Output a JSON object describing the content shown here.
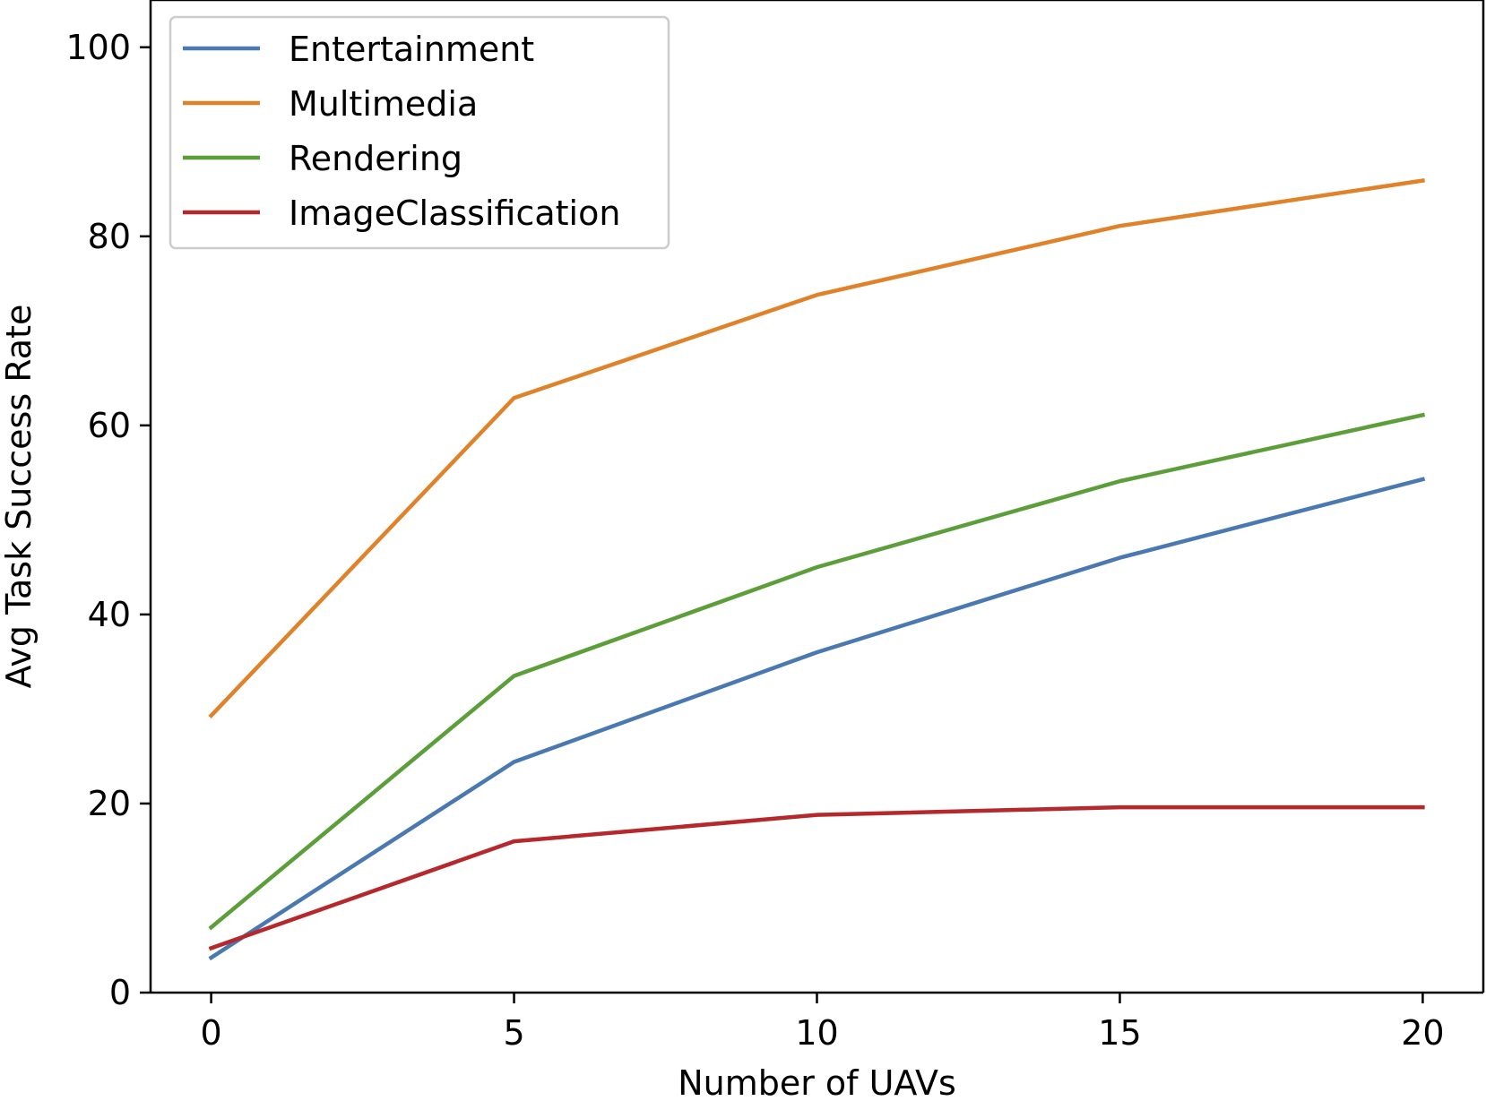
{
  "chart_data": {
    "type": "line",
    "xlabel": "Number of UAVs",
    "ylabel": "Avg Task Success Rate",
    "x": [
      0,
      5,
      10,
      15,
      20
    ],
    "xticks": [
      0,
      5,
      10,
      15,
      20
    ],
    "yticks": [
      0,
      20,
      40,
      60,
      80,
      100
    ],
    "xlim": [
      -1,
      21
    ],
    "ylim": [
      0,
      105
    ],
    "grid": false,
    "legend_position": "top-left",
    "series": [
      {
        "name": "Entertainment",
        "color": "#4a78b0",
        "values": [
          3.7,
          24.4,
          36.0,
          46.0,
          54.3
        ]
      },
      {
        "name": "Multimedia",
        "color": "#e0822a",
        "values": [
          29.3,
          62.9,
          73.8,
          81.1,
          85.9
        ]
      },
      {
        "name": "Rendering",
        "color": "#5c9e3a",
        "values": [
          6.9,
          33.5,
          45.0,
          54.1,
          61.1
        ]
      },
      {
        "name": "ImageClassification",
        "color": "#b5282c",
        "values": [
          4.7,
          16.0,
          18.8,
          19.6,
          19.6
        ]
      }
    ]
  }
}
